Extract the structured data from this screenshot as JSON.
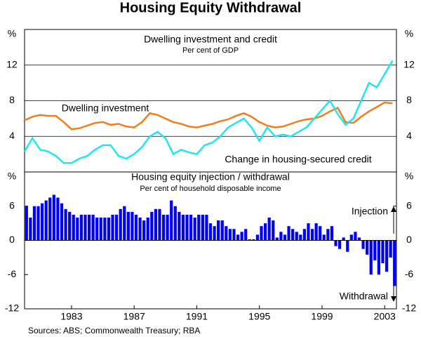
{
  "title": "Housing Equity Withdrawal",
  "source": "Sources: ABS; Commonwealth Treasury; RBA",
  "chart_data": [
    {
      "type": "line",
      "title": "Dwelling investment and credit",
      "subtitle": "Per cent of GDP",
      "unit": "%",
      "x": [
        1980,
        1980.5,
        1981,
        1981.5,
        1982,
        1982.5,
        1983,
        1983.5,
        1984,
        1984.5,
        1985,
        1985.5,
        1986,
        1986.5,
        1987,
        1987.5,
        1988,
        1988.5,
        1989,
        1989.5,
        1990,
        1990.5,
        1991,
        1991.5,
        1992,
        1992.5,
        1993,
        1993.5,
        1994,
        1994.5,
        1995,
        1995.5,
        1996,
        1996.5,
        1997,
        1997.5,
        1998,
        1998.5,
        1999,
        1999.5,
        2000,
        2000.5,
        2001,
        2001.5,
        2002,
        2002.5,
        2003,
        2003.5
      ],
      "series": [
        {
          "name": "Dwelling investment",
          "color": "#f07d1e",
          "values": [
            5.8,
            6.2,
            6.4,
            6.3,
            6.3,
            5.6,
            4.8,
            4.9,
            5.2,
            5.5,
            5.6,
            5.3,
            5.4,
            5.1,
            5.0,
            5.6,
            6.6,
            6.4,
            6.0,
            5.6,
            5.4,
            5.1,
            5.0,
            5.2,
            5.4,
            5.7,
            5.9,
            6.3,
            6.6,
            6.2,
            5.6,
            5.2,
            5.0,
            5.1,
            5.4,
            5.7,
            5.9,
            6.0,
            6.3,
            6.8,
            7.2,
            5.6,
            5.5,
            6.2,
            6.8,
            7.3,
            7.8,
            7.7
          ]
        },
        {
          "name": "Change in housing-secured credit",
          "color": "#20e6f0",
          "values": [
            2.3,
            3.8,
            2.5,
            2.3,
            1.8,
            1.0,
            1.0,
            1.5,
            1.8,
            2.5,
            3.0,
            3.0,
            1.8,
            1.5,
            2.0,
            2.8,
            4.0,
            4.5,
            3.8,
            2.0,
            2.5,
            2.2,
            2.0,
            3.0,
            3.3,
            4.0,
            5.0,
            5.5,
            6.0,
            5.0,
            3.5,
            5.0,
            4.0,
            4.2,
            4.0,
            4.5,
            5.0,
            6.0,
            7.0,
            8.0,
            6.5,
            5.3,
            6.0,
            8.0,
            10.0,
            9.5,
            11.0,
            12.5
          ]
        }
      ],
      "xlim": [
        1980,
        2003.75
      ],
      "ylim": [
        0,
        16
      ],
      "yticks": [
        4,
        8,
        12
      ],
      "grid": true
    },
    {
      "type": "bar",
      "title": "Housing equity injection / withdrawal",
      "subtitle": "Per cent of household disposable income",
      "unit": "%",
      "annotations": [
        "Injection",
        "Withdrawal"
      ],
      "color": "#0000ff",
      "x": [
        1980,
        1980.25,
        1980.5,
        1980.75,
        1981,
        1981.25,
        1981.5,
        1981.75,
        1982,
        1982.25,
        1982.5,
        1982.75,
        1983,
        1983.25,
        1983.5,
        1983.75,
        1984,
        1984.25,
        1984.5,
        1984.75,
        1985,
        1985.25,
        1985.5,
        1985.75,
        1986,
        1986.25,
        1986.5,
        1986.75,
        1987,
        1987.25,
        1987.5,
        1987.75,
        1988,
        1988.25,
        1988.5,
        1988.75,
        1989,
        1989.25,
        1989.5,
        1989.75,
        1990,
        1990.25,
        1990.5,
        1990.75,
        1991,
        1991.25,
        1991.5,
        1991.75,
        1992,
        1992.25,
        1992.5,
        1992.75,
        1993,
        1993.25,
        1993.5,
        1993.75,
        1994,
        1994.25,
        1994.5,
        1994.75,
        1995,
        1995.25,
        1995.5,
        1995.75,
        1996,
        1996.25,
        1996.5,
        1996.75,
        1997,
        1997.25,
        1997.5,
        1997.75,
        1998,
        1998.25,
        1998.5,
        1998.75,
        1999,
        1999.25,
        1999.5,
        1999.75,
        2000,
        2000.25,
        2000.5,
        2000.75,
        2001,
        2001.25,
        2001.5,
        2001.75,
        2002,
        2002.25,
        2002.5,
        2002.75,
        2003,
        2003.25,
        2003.5
      ],
      "values": [
        6.0,
        4.0,
        6.0,
        6.0,
        6.5,
        7.0,
        7.5,
        8.0,
        7.5,
        6.5,
        5.5,
        5.0,
        4.5,
        4.0,
        4.5,
        4.5,
        4.5,
        4.5,
        4.0,
        4.0,
        4.0,
        4.0,
        4.5,
        4.5,
        5.5,
        6.0,
        5.0,
        5.0,
        4.5,
        4.0,
        3.5,
        4.0,
        5.0,
        5.5,
        5.5,
        4.5,
        4.5,
        7.0,
        6.0,
        5.0,
        4.5,
        4.5,
        4.5,
        4.0,
        4.5,
        4.5,
        4.5,
        3.0,
        2.5,
        3.5,
        3.5,
        2.5,
        2.0,
        2.0,
        1.0,
        1.5,
        2.0,
        0.2,
        0.2,
        1.0,
        2.5,
        3.0,
        4.0,
        3.5,
        0.5,
        1.5,
        1.0,
        2.5,
        2.0,
        1.5,
        1.0,
        2.0,
        3.0,
        2.0,
        3.0,
        2.5,
        1.0,
        2.0,
        2.5,
        -1.0,
        -1.5,
        0.5,
        -2.0,
        1.0,
        1.5,
        0.5,
        -1.5,
        -2.5,
        -6.0,
        -3.5,
        -6.0,
        -4.0,
        -5.5,
        -3.0,
        -8.0
      ],
      "xlim": [
        1980,
        2003.75
      ],
      "ylim": [
        -12,
        12
      ],
      "yticks": [
        -12,
        -6,
        0,
        6
      ],
      "xticks": [
        1983,
        1987,
        1991,
        1995,
        1999,
        2003
      ]
    }
  ]
}
